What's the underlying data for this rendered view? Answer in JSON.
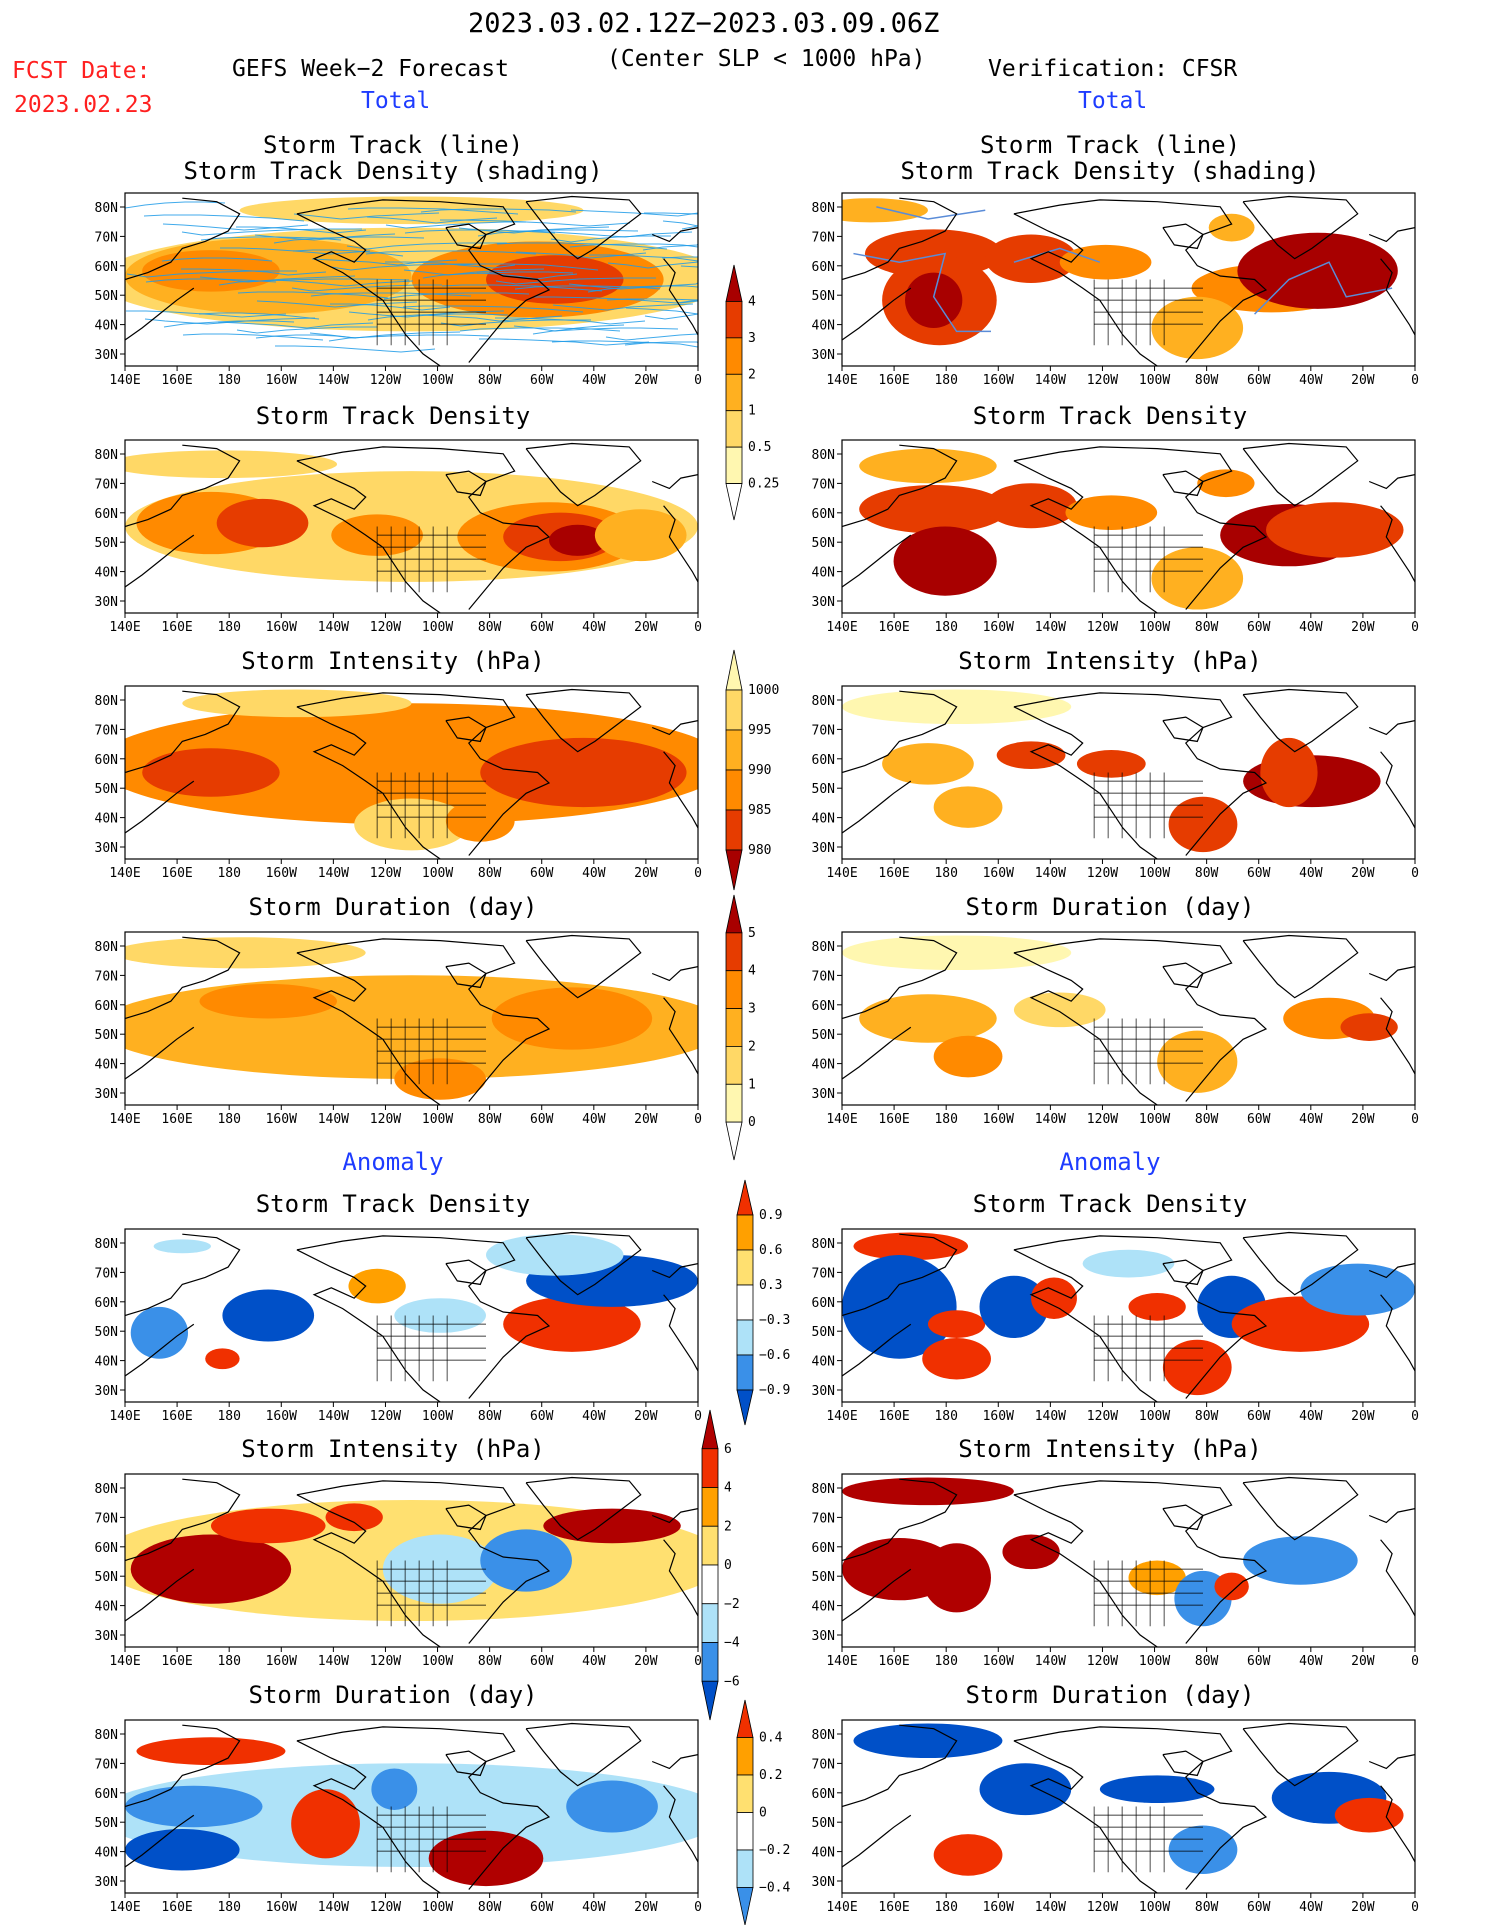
{
  "header": {
    "date_range": "2023.03.02.12Z−2023.03.09.06Z",
    "subtitle": "(Center SLP < 1000 hPa)",
    "fcst_label": "FCST Date:",
    "fcst_date": "2023.02.23",
    "left_source": "GEFS Week−2 Forecast",
    "right_source": "Verification: CFSR",
    "total_left": "Total",
    "total_right": "Total",
    "anomaly_left": "Anomaly",
    "anomaly_right": "Anomaly"
  },
  "panel_titles": {
    "track_line": "Storm Track (line)",
    "track_shading": "Storm Track Density (shading)",
    "density": "Storm Track Density",
    "intensity": "Storm Intensity (hPa)",
    "duration": "Storm Duration (day)"
  },
  "axes": {
    "lat_labels": [
      "80N",
      "70N",
      "60N",
      "50N",
      "40N",
      "30N"
    ],
    "lon_labels": [
      "140E",
      "160E",
      "180",
      "160W",
      "140W",
      "120W",
      "100W",
      "80W",
      "60W",
      "40W",
      "20W",
      "0"
    ]
  },
  "colorbars": {
    "density_total": [
      "4",
      "3",
      "2",
      "1",
      "0.5",
      "0.25"
    ],
    "intensity_total": [
      "1000",
      "995",
      "990",
      "985",
      "980"
    ],
    "duration_total": [
      "5",
      "4",
      "3",
      "2",
      "1",
      "0"
    ],
    "density_anom": [
      "0.9",
      "0.6",
      "0.3",
      "−0.3",
      "−0.6",
      "−0.9"
    ],
    "intensity_anom": [
      "6",
      "4",
      "2",
      "0",
      "−2",
      "−4",
      "−6"
    ],
    "duration_anom": [
      "0.4",
      "0.2",
      "0",
      "−0.2",
      "−0.4"
    ]
  },
  "colors": {
    "total_scale": [
      "#fff7b0",
      "#ffd866",
      "#ffb020",
      "#ff8a00",
      "#e63c00",
      "#a80000"
    ],
    "intensity_total_scale": [
      "#fff7b0",
      "#ffd866",
      "#ffb020",
      "#ff8a00",
      "#e63c00",
      "#a80000"
    ],
    "anom_scale": [
      "#0050c8",
      "#3a90e8",
      "#aee2f8",
      "#ffffff",
      "#ffe070",
      "#ffa000",
      "#f03000",
      "#b00000"
    ],
    "track_line": "#1e9be8"
  }
}
